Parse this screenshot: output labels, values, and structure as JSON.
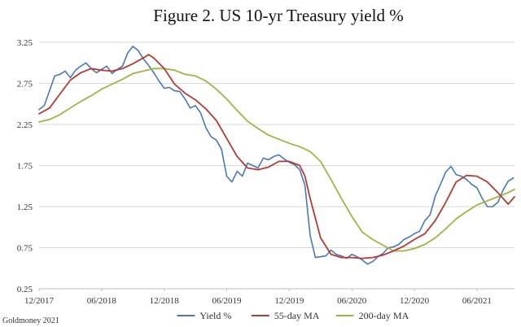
{
  "chart_data": {
    "type": "line",
    "title": "Figure 2. US 10-yr Treasury yield %",
    "source": "Goldmoney 2021",
    "xlabel": "",
    "ylabel": "",
    "ylim": [
      0.25,
      3.25
    ],
    "yticks": [
      "0.25",
      "0.75",
      "1.25",
      "1.75",
      "2.25",
      "2.75",
      "3.25"
    ],
    "xlim": [
      0,
      45.6
    ],
    "xticks": [
      {
        "label": "12/2017",
        "pos": 0
      },
      {
        "label": "06/2018",
        "pos": 6
      },
      {
        "label": "12/2018",
        "pos": 12
      },
      {
        "label": "06/2019",
        "pos": 18
      },
      {
        "label": "12/2019",
        "pos": 24
      },
      {
        "label": "06/2020",
        "pos": 30
      },
      {
        "label": "12/2020",
        "pos": 36
      },
      {
        "label": "06/2021",
        "pos": 42
      }
    ],
    "grid": true,
    "legend_position": "bottom",
    "series": [
      {
        "name": "Yield %",
        "color": "#4a78b8",
        "width": 1.6,
        "x": [
          0,
          0.5,
          1,
          1.5,
          2,
          2.5,
          3,
          3.5,
          4,
          4.5,
          5,
          5.5,
          6,
          6.5,
          7,
          7.5,
          8,
          8.5,
          9,
          9.5,
          10,
          10.5,
          11,
          11.5,
          12,
          12.5,
          13,
          13.5,
          14,
          14.5,
          15,
          15.5,
          16,
          16.5,
          17,
          17.5,
          18,
          18.5,
          19,
          19.5,
          20,
          20.5,
          21,
          21.5,
          22,
          22.5,
          23,
          23.5,
          24,
          24.5,
          25,
          25.5,
          26,
          26.5,
          27,
          27.5,
          28,
          28.5,
          29,
          29.5,
          30,
          30.5,
          31,
          31.5,
          32,
          32.5,
          33,
          33.5,
          34,
          34.5,
          35,
          35.5,
          36,
          36.5,
          37,
          37.5,
          38,
          38.5,
          39,
          39.5,
          40,
          40.5,
          41,
          41.5,
          42,
          42.5,
          43,
          43.5,
          44,
          44.5,
          45,
          45.5
        ],
        "values": [
          2.43,
          2.48,
          2.66,
          2.84,
          2.86,
          2.9,
          2.82,
          2.91,
          2.96,
          3.0,
          2.93,
          2.88,
          2.92,
          2.96,
          2.87,
          2.92,
          2.96,
          3.12,
          3.2,
          3.15,
          3.05,
          2.97,
          2.88,
          2.78,
          2.69,
          2.7,
          2.66,
          2.65,
          2.56,
          2.45,
          2.48,
          2.39,
          2.21,
          2.1,
          2.06,
          1.95,
          1.62,
          1.55,
          1.68,
          1.62,
          1.78,
          1.75,
          1.72,
          1.84,
          1.82,
          1.86,
          1.88,
          1.83,
          1.79,
          1.76,
          1.7,
          1.51,
          0.9,
          0.63,
          0.64,
          0.65,
          0.72,
          0.67,
          0.65,
          0.62,
          0.67,
          0.64,
          0.6,
          0.55,
          0.58,
          0.64,
          0.68,
          0.75,
          0.76,
          0.79,
          0.85,
          0.88,
          0.92,
          0.95,
          1.08,
          1.15,
          1.38,
          1.52,
          1.67,
          1.74,
          1.64,
          1.62,
          1.58,
          1.52,
          1.48,
          1.35,
          1.25,
          1.25,
          1.3,
          1.45,
          1.56,
          1.6
        ]
      },
      {
        "name": "55-day MA",
        "color": "#b83a34",
        "width": 1.8,
        "x": [
          0,
          1,
          2,
          3,
          4,
          5,
          6,
          7,
          8,
          9,
          10,
          10.5,
          11,
          12,
          13,
          14,
          15,
          16,
          17,
          18,
          19,
          20,
          21,
          22,
          23,
          24,
          25,
          25.5,
          26,
          27,
          28,
          29,
          30,
          31,
          32,
          33,
          34,
          35,
          36,
          37,
          38,
          39,
          40,
          41,
          42,
          43,
          44,
          45,
          45.6
        ],
        "values": [
          2.38,
          2.45,
          2.62,
          2.79,
          2.88,
          2.93,
          2.91,
          2.9,
          2.93,
          2.99,
          3.06,
          3.1,
          3.06,
          2.93,
          2.74,
          2.63,
          2.55,
          2.44,
          2.3,
          2.08,
          1.86,
          1.72,
          1.7,
          1.73,
          1.8,
          1.8,
          1.75,
          1.62,
          1.35,
          0.87,
          0.67,
          0.63,
          0.63,
          0.62,
          0.63,
          0.66,
          0.71,
          0.77,
          0.85,
          0.92,
          1.08,
          1.3,
          1.55,
          1.63,
          1.62,
          1.55,
          1.42,
          1.28,
          1.37
        ]
      },
      {
        "name": "200-day MA",
        "color": "#9fb545",
        "width": 1.8,
        "x": [
          0,
          1,
          2,
          3,
          4,
          5,
          6,
          7,
          8,
          9,
          10,
          11,
          12,
          13,
          14,
          15,
          16,
          17,
          18,
          19,
          20,
          21,
          22,
          23,
          24,
          25,
          26,
          27,
          28,
          29,
          30,
          31,
          32,
          33,
          34,
          35,
          36,
          37,
          38,
          39,
          40,
          41,
          42,
          43,
          44,
          45,
          45.6
        ],
        "values": [
          2.28,
          2.31,
          2.37,
          2.45,
          2.53,
          2.6,
          2.68,
          2.74,
          2.8,
          2.87,
          2.9,
          2.93,
          2.93,
          2.91,
          2.86,
          2.84,
          2.78,
          2.68,
          2.56,
          2.42,
          2.29,
          2.2,
          2.12,
          2.07,
          2.02,
          1.98,
          1.92,
          1.8,
          1.58,
          1.35,
          1.13,
          0.94,
          0.85,
          0.78,
          0.71,
          0.71,
          0.74,
          0.79,
          0.87,
          0.98,
          1.1,
          1.19,
          1.27,
          1.32,
          1.37,
          1.42,
          1.46
        ]
      }
    ]
  }
}
